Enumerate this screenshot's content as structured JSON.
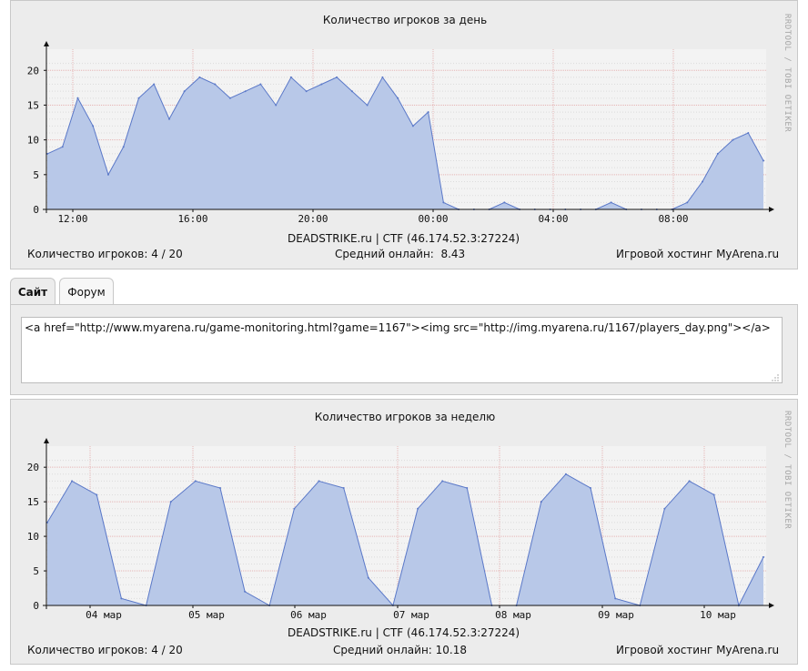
{
  "day_graph": {
    "title": "Количество игроков за день",
    "watermark": "RRDTOOL / TOBI OETIKER",
    "server": "DEADSTRIKE.ru | CTF (46.174.52.3:27224)",
    "players": "Количество игроков: 4 / 20",
    "average": "Средний онлайн:  8.43",
    "hosting": "Игровой хостинг MyArena.ru",
    "x_ticks": [
      "12:00",
      "16:00",
      "20:00",
      "00:00",
      "04:00",
      "08:00"
    ],
    "y_ticks": [
      "0",
      "5",
      "10",
      "15",
      "20"
    ]
  },
  "week_graph": {
    "title": "Количество игроков за неделю",
    "watermark": "RRDTOOL / TOBI OETIKER",
    "server": "DEADSTRIKE.ru | CTF (46.174.52.3:27224)",
    "players": "Количество игроков: 4 / 20",
    "average": "Средний онлайн: 10.18",
    "hosting": "Игровой хостинг MyArena.ru",
    "x_ticks": [
      "04 мар",
      "05 мар",
      "06 мар",
      "07 мар",
      "08 мар",
      "09 мар",
      "10 мар"
    ],
    "y_ticks": [
      "0",
      "5",
      "10",
      "15",
      "20"
    ]
  },
  "tabs": [
    {
      "label": "Сайт",
      "active": true
    },
    {
      "label": "Форум",
      "active": false
    }
  ],
  "embed_code": "<a href=\"http://www.myarena.ru/game-monitoring.html?game=1167\"><img src=\"http://img.myarena.ru/1167/players_day.png\"></a>",
  "colors": {
    "area_fill": "#b8c8e8",
    "area_line": "#5a78c8",
    "grid": "#dcdcdc",
    "background": "#ececec"
  },
  "chart_data": [
    {
      "type": "area",
      "title": "Количество игроков за день",
      "x": [
        "11:00",
        "11:30",
        "12:00",
        "12:30",
        "13:00",
        "13:30",
        "14:00",
        "14:30",
        "15:00",
        "15:30",
        "16:00",
        "16:30",
        "17:00",
        "17:30",
        "18:00",
        "18:30",
        "19:00",
        "19:30",
        "20:00",
        "20:30",
        "21:00",
        "21:30",
        "22:00",
        "22:30",
        "23:00",
        "23:30",
        "00:00",
        "00:30",
        "01:00",
        "01:30",
        "02:00",
        "02:30",
        "03:00",
        "03:30",
        "04:00",
        "04:30",
        "05:00",
        "05:30",
        "06:00",
        "06:30",
        "07:00",
        "07:30",
        "08:00",
        "08:30",
        "09:00",
        "09:30",
        "10:00",
        "10:30"
      ],
      "values": [
        8,
        9,
        16,
        12,
        5,
        9,
        16,
        18,
        13,
        17,
        19,
        18,
        16,
        17,
        18,
        15,
        19,
        17,
        18,
        19,
        17,
        15,
        19,
        16,
        12,
        14,
        1,
        0,
        0,
        0,
        1,
        0,
        0,
        0,
        0,
        0,
        0,
        1,
        0,
        0,
        0,
        0,
        1,
        4,
        8,
        10,
        11,
        7
      ],
      "ylim": [
        0,
        22
      ],
      "grid": true
    },
    {
      "type": "area",
      "title": "Количество игроков за неделю",
      "x": [
        "03 мар 18:00",
        "04 мар 00:00",
        "04 мар 06:00",
        "04 мар 12:00",
        "04 мар 18:00",
        "05 мар 00:00",
        "05 мар 06:00",
        "05 мар 12:00",
        "05 мар 18:00",
        "06 мар 00:00",
        "06 мар 06:00",
        "06 мар 12:00",
        "06 мар 18:00",
        "07 мар 00:00",
        "07 мар 06:00",
        "07 мар 12:00",
        "07 мар 18:00",
        "08 мар 00:00",
        "08 мар 06:00",
        "08 мар 12:00",
        "08 мар 18:00",
        "09 мар 00:00",
        "09 мар 06:00",
        "09 мар 12:00",
        "09 мар 18:00",
        "10 мар 00:00",
        "10 мар 06:00",
        "10 мар 12:00",
        "10 мар 18:00",
        "11 мар 00:00"
      ],
      "values": [
        12,
        18,
        16,
        1,
        0,
        15,
        18,
        17,
        2,
        0,
        14,
        18,
        17,
        4,
        0,
        14,
        18,
        17,
        0,
        0,
        15,
        19,
        17,
        1,
        0,
        14,
        18,
        16,
        0,
        7
      ],
      "ylim": [
        0,
        22
      ],
      "grid": true
    }
  ]
}
